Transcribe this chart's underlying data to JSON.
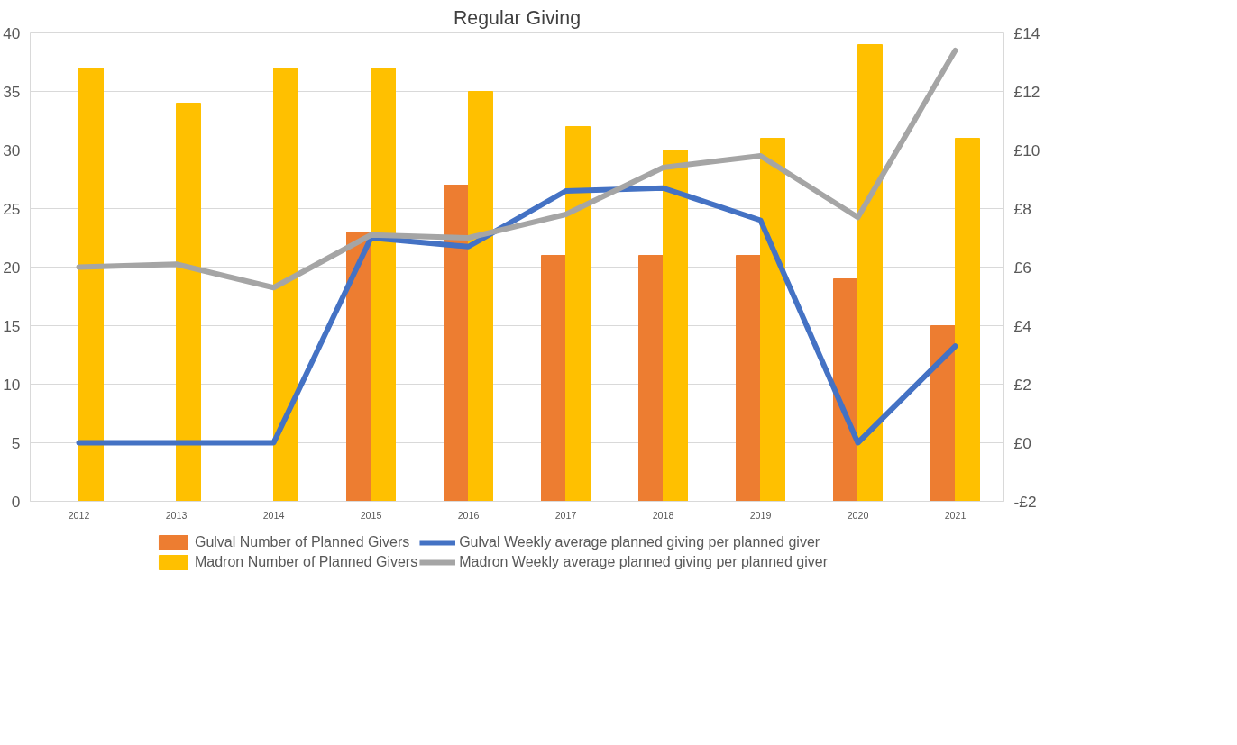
{
  "chart_data": {
    "type": "bar",
    "title": "Regular Giving",
    "categories": [
      "2012",
      "2013",
      "2014",
      "2015",
      "2016",
      "2017",
      "2018",
      "2019",
      "2020",
      "2021"
    ],
    "series": [
      {
        "name": "Gulval Number of Planned Givers",
        "color": "#ed7d31",
        "values": [
          null,
          null,
          null,
          23,
          27,
          21,
          21,
          21,
          19,
          15
        ]
      },
      {
        "name": "Madron Number of Planned Givers",
        "color": "#ffc000",
        "values": [
          37,
          34,
          37,
          37,
          35,
          32,
          30,
          31,
          39,
          31
        ]
      },
      {
        "name": "Gulval Weekly average planned giving per planned giver",
        "type": "line",
        "axis": "y2",
        "color": "#4472c4",
        "values": [
          0,
          0,
          0,
          7.0,
          6.7,
          8.6,
          8.7,
          7.6,
          0,
          3.3
        ]
      },
      {
        "name": "Madron Weekly average planned giving per planned giver",
        "type": "line",
        "axis": "y2",
        "color": "#a5a5a5",
        "values": [
          6.0,
          6.1,
          5.3,
          7.1,
          7.0,
          7.8,
          9.4,
          9.8,
          7.7,
          13.4
        ]
      }
    ],
    "ylim": [
      0,
      40
    ],
    "yticks": [
      0,
      5,
      10,
      15,
      20,
      25,
      30,
      35,
      40
    ],
    "y2lim": [
      -2,
      14
    ],
    "y2ticks": [
      {
        "value": -2,
        "label": "-£2"
      },
      {
        "value": 0,
        "label": "£0"
      },
      {
        "value": 2,
        "label": "£2"
      },
      {
        "value": 4,
        "label": "£4"
      },
      {
        "value": 6,
        "label": "£6"
      },
      {
        "value": 8,
        "label": "£8"
      },
      {
        "value": 10,
        "label": "£10"
      },
      {
        "value": 12,
        "label": "£12"
      },
      {
        "value": 14,
        "label": "£14"
      }
    ],
    "grid": "y",
    "legend": "bottom",
    "marker": "none",
    "line_style": "solid"
  }
}
